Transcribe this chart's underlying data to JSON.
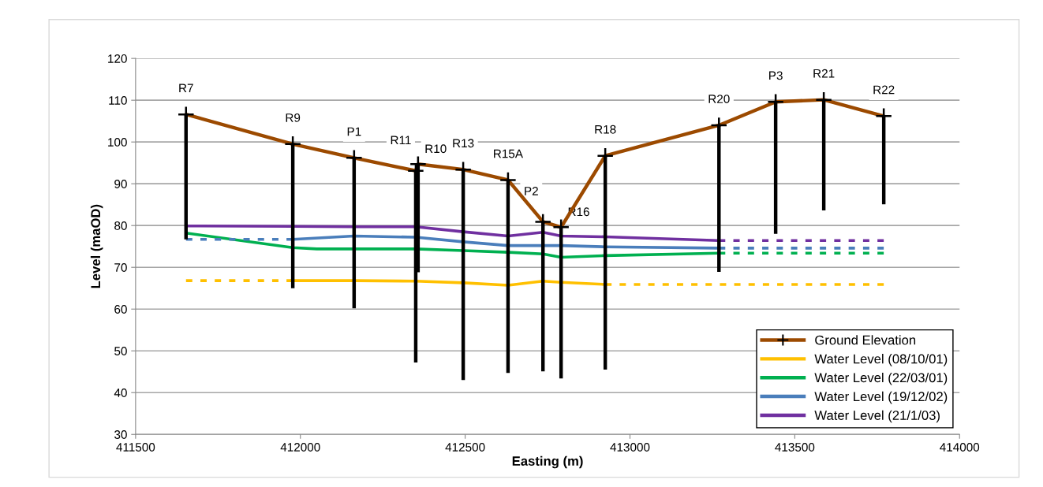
{
  "chart_data": {
    "type": "line",
    "xlabel": "Easting (m)",
    "ylabel": "Level (maOD)",
    "xlim": [
      411500,
      414000
    ],
    "xticks": [
      411500,
      412000,
      412500,
      413000,
      413500,
      414000
    ],
    "ylim": [
      30,
      120
    ],
    "yticks": [
      30,
      40,
      50,
      60,
      70,
      80,
      90,
      100,
      110,
      120
    ],
    "grid": "y",
    "legend": "bottom right",
    "series": [
      {
        "name": "Ground Elevation",
        "color": "#9c4a00",
        "marker": "cross",
        "line_style": "solid",
        "x": [
          411653,
          411977,
          412163,
          412350,
          412357,
          412494,
          412630,
          412736,
          412791,
          412925,
          413270,
          413442,
          413588,
          413770
        ],
        "values": [
          106.6,
          99.5,
          96.2,
          93.1,
          94.7,
          93.4,
          90.9,
          80.9,
          79.6,
          96.7,
          104.0,
          109.6,
          110.1,
          106.2
        ],
        "errors": [
          [
            76.7,
            106.6
          ],
          [
            65.0,
            99.5
          ],
          [
            60.2,
            96.2
          ],
          [
            47.2,
            93.1
          ],
          [
            68.8,
            94.7
          ],
          [
            43.0,
            93.4
          ],
          [
            44.7,
            90.9
          ],
          [
            45.1,
            80.9
          ],
          [
            43.4,
            79.6
          ],
          [
            45.5,
            96.7
          ],
          [
            68.9,
            104.0
          ],
          [
            78.0,
            109.6
          ],
          [
            83.6,
            110.1
          ],
          [
            85.1,
            106.2
          ]
        ]
      },
      {
        "name": "Water Level (08/10/01)",
        "color": "#ffc000",
        "line_style": "solid",
        "x": [
          411977,
          412163,
          412350,
          412494,
          412630,
          412736,
          412791,
          412925
        ],
        "values": [
          66.8,
          66.8,
          66.7,
          66.3,
          65.7,
          66.7,
          66.4,
          65.9
        ]
      },
      {
        "name": "Water Level (22/03/01)",
        "color": "#00b050",
        "line_style": "solid",
        "x": [
          411653,
          411977,
          412050,
          412163,
          412350,
          412494,
          412630,
          412736,
          412791,
          412925,
          413270
        ],
        "values": [
          78.2,
          74.7,
          74.4,
          74.4,
          74.4,
          74.0,
          73.6,
          73.2,
          72.4,
          72.8,
          73.4
        ]
      },
      {
        "name": "Water Level (19/12/02)",
        "color": "#4a7ebb",
        "line_style": "solid",
        "x": [
          411977,
          412163,
          412350,
          412494,
          412630,
          412736,
          412791,
          412925,
          413270
        ],
        "values": [
          76.7,
          77.5,
          77.2,
          76.1,
          75.2,
          75.2,
          75.2,
          74.9,
          74.6
        ]
      },
      {
        "name": "Water Level (21/1/03)",
        "color": "#7030a0",
        "line_style": "solid",
        "x": [
          411653,
          411977,
          412163,
          412350,
          412494,
          412630,
          412736,
          412791,
          412925,
          413270
        ],
        "values": [
          79.9,
          79.8,
          79.7,
          79.7,
          78.5,
          77.5,
          78.4,
          77.5,
          77.3,
          76.4
        ]
      },
      {
        "color": "#ffc000",
        "line_style": "dashed",
        "x": [
          411653,
          411977
        ],
        "values": [
          66.8,
          66.8
        ]
      },
      {
        "color": "#ffc000",
        "line_style": "dashed",
        "x": [
          412925,
          413770
        ],
        "values": [
          65.9,
          65.9
        ]
      },
      {
        "color": "#00b050",
        "line_style": "dashed",
        "x": [
          413270,
          413770
        ],
        "values": [
          73.4,
          73.4
        ]
      },
      {
        "color": "#4a7ebb",
        "line_style": "dashed",
        "x": [
          411653,
          411977
        ],
        "values": [
          76.7,
          76.7
        ]
      },
      {
        "color": "#4a7ebb",
        "line_style": "dashed",
        "x": [
          413270,
          413770
        ],
        "values": [
          74.6,
          74.6
        ]
      },
      {
        "color": "#7030a0",
        "line_style": "dashed",
        "x": [
          413270,
          413770
        ],
        "values": [
          76.4,
          76.4
        ]
      }
    ],
    "annotations": [
      {
        "text": "R7",
        "x": 411653,
        "y": 106.6
      },
      {
        "text": "R9",
        "x": 411977,
        "y": 99.5
      },
      {
        "text": "P1",
        "x": 412163,
        "y": 96.2
      },
      {
        "text": "R11",
        "x": 412350,
        "y": 93.1
      },
      {
        "text": "R10",
        "x": 412357,
        "y": 94.7
      },
      {
        "text": "R13",
        "x": 412494,
        "y": 93.4
      },
      {
        "text": "R15A",
        "x": 412630,
        "y": 90.9
      },
      {
        "text": "P2",
        "x": 412736,
        "y": 80.9
      },
      {
        "text": "R16",
        "x": 412791,
        "y": 79.6
      },
      {
        "text": "R18",
        "x": 412925,
        "y": 96.7
      },
      {
        "text": "R20",
        "x": 413270,
        "y": 104.0
      },
      {
        "text": "P3",
        "x": 413442,
        "y": 109.6
      },
      {
        "text": "R21",
        "x": 413588,
        "y": 110.1
      },
      {
        "text": "R22",
        "x": 413770,
        "y": 106.2
      }
    ]
  }
}
